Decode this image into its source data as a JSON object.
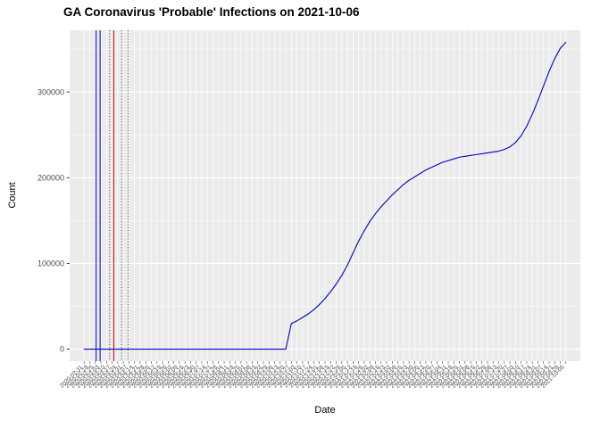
{
  "chart_data": {
    "type": "line",
    "title": "GA Coronavirus 'Probable' Infections on 2021-10-06",
    "xlabel": "Date",
    "ylabel": "Count",
    "legend": "none",
    "grid": true,
    "panel_bg": "#ebebeb",
    "grid_color": "#ffffff",
    "line_color": "#0000cd",
    "axis_text_color": "#4d4d4d",
    "tick_color": "#333333",
    "ylim": [
      -14000,
      372000
    ],
    "yticks": [
      0,
      100000,
      200000,
      300000
    ],
    "ytick_labels": [
      "0",
      "100000",
      "200000",
      "300000"
    ],
    "minor_yticks": [
      50000,
      150000,
      250000,
      350000
    ],
    "x": [
      "2020-02-11",
      "2020-02-18",
      "2020-02-25",
      "2020-03-03",
      "2020-03-10",
      "2020-03-17",
      "2020-03-24",
      "2020-03-31",
      "2020-04-07",
      "2020-04-14",
      "2020-04-21",
      "2020-04-28",
      "2020-05-05",
      "2020-05-12",
      "2020-05-19",
      "2020-05-26",
      "2020-06-02",
      "2020-06-09",
      "2020-06-16",
      "2020-06-23",
      "2020-06-30",
      "2020-07-07",
      "2020-07-14",
      "2020-07-21",
      "2020-07-28",
      "2020-08-04",
      "2020-08-11",
      "2020-08-18",
      "2020-08-25",
      "2020-09-01",
      "2020-09-08",
      "2020-09-15",
      "2020-09-22",
      "2020-09-29",
      "2020-10-06",
      "2020-10-13",
      "2020-10-20",
      "2020-10-27",
      "2020-11-03",
      "2020-11-10",
      "2020-11-17",
      "2020-11-24",
      "2020-12-01",
      "2020-12-08",
      "2020-12-15",
      "2020-12-22",
      "2020-12-29",
      "2021-01-05",
      "2021-01-12",
      "2021-01-19",
      "2021-01-26",
      "2021-02-02",
      "2021-02-09",
      "2021-02-16",
      "2021-02-23",
      "2021-03-02",
      "2021-03-09",
      "2021-03-16",
      "2021-03-23",
      "2021-03-30",
      "2021-04-06",
      "2021-04-13",
      "2021-04-20",
      "2021-04-27",
      "2021-05-04",
      "2021-05-11",
      "2021-05-18",
      "2021-05-25",
      "2021-06-01",
      "2021-06-08",
      "2021-06-15",
      "2021-06-22",
      "2021-06-29",
      "2021-07-06",
      "2021-07-13",
      "2021-07-20",
      "2021-07-27",
      "2021-08-03",
      "2021-08-10",
      "2021-08-17",
      "2021-08-24",
      "2021-08-31",
      "2021-09-07",
      "2021-09-14",
      "2021-09-21",
      "2021-09-28",
      "2021-10-05"
    ],
    "values": [
      0,
      0,
      0,
      0,
      0,
      0,
      0,
      0,
      0,
      0,
      0,
      0,
      0,
      0,
      0,
      0,
      0,
      0,
      0,
      0,
      0,
      0,
      0,
      0,
      0,
      0,
      0,
      0,
      0,
      0,
      0,
      0,
      0,
      0,
      0,
      0,
      0,
      30000,
      33000,
      37000,
      41000,
      46000,
      52000,
      59000,
      67000,
      76000,
      86000,
      98000,
      112000,
      126000,
      138000,
      149000,
      158000,
      166000,
      173000,
      180000,
      186000,
      192000,
      197000,
      201000,
      205000,
      209000,
      212000,
      215000,
      218000,
      220000,
      222000,
      224000,
      225000,
      226000,
      227000,
      228000,
      229000,
      230000,
      231000,
      233000,
      236000,
      241000,
      249000,
      260000,
      274000,
      290000,
      307000,
      324000,
      339000,
      351000,
      358149
    ],
    "reference_lines": [
      {
        "x": "2020-02-26",
        "color": "#0000cd",
        "style": "solid"
      },
      {
        "x": "2020-03-02",
        "color": "#0000cd",
        "style": "solid"
      },
      {
        "x": "2020-03-14",
        "color": "#404040",
        "style": "dotted"
      },
      {
        "x": "2020-03-19",
        "color": "#dd0000",
        "style": "solid"
      },
      {
        "x": "2020-03-29",
        "color": "#404040",
        "style": "dotted"
      },
      {
        "x": "2020-04-06",
        "color": "#404040",
        "style": "dotted"
      }
    ]
  }
}
